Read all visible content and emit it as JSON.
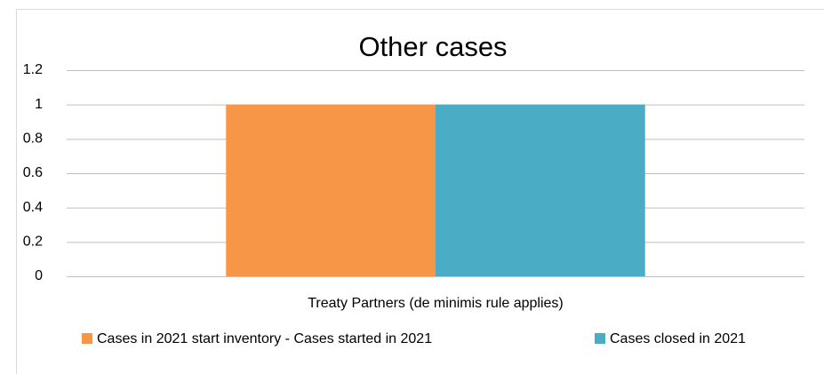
{
  "chart_data": {
    "type": "bar",
    "title": "Other cases",
    "categories": [
      "Treaty Partners (de minimis rule applies)"
    ],
    "series": [
      {
        "name": "Cases in 2021 start inventory - Cases started in 2021",
        "color": "#f79646",
        "values": [
          1
        ]
      },
      {
        "name": "Cases closed in 2021",
        "color": "#4bacc6",
        "values": [
          1
        ]
      }
    ],
    "ylim": [
      0,
      1.2
    ],
    "yticks": [
      0,
      0.2,
      0.4,
      0.6,
      0.8,
      1,
      1.2
    ],
    "grid": true,
    "legend": "bottom"
  }
}
